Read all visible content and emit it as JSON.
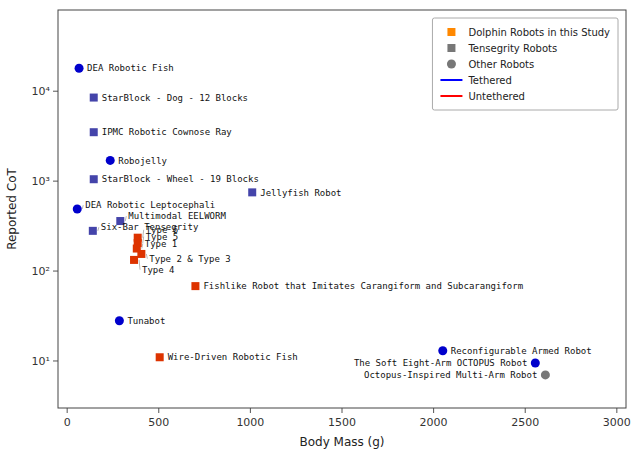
{
  "chart_data": {
    "type": "scatter",
    "xlabel": "Body Mass (g)",
    "ylabel": "Reported CoT",
    "log": "y",
    "grid": false,
    "legend": "upper right",
    "xlim": [
      -50,
      3050
    ],
    "xticks": [
      0,
      500,
      1000,
      1500,
      2000,
      2500,
      3000
    ],
    "ylim": [
      3,
      80000
    ],
    "yticks": [
      {
        "value": 10,
        "label": "10¹"
      },
      {
        "value": 100,
        "label": "10²"
      },
      {
        "value": 1000,
        "label": "10³"
      },
      {
        "value": 10000,
        "label": "10⁴"
      }
    ],
    "x": [
      65,
      145,
      145,
      235,
      145,
      1010,
      55,
      290,
      140,
      385,
      385,
      380,
      405,
      365,
      700,
      285,
      505,
      2050,
      2555,
      2610
    ],
    "values": [
      18000,
      8500,
      3500,
      1700,
      1050,
      750,
      490,
      360,
      280,
      235,
      205,
      178,
      155,
      133,
      68,
      28,
      11,
      13,
      9.5,
      7.0
    ],
    "annotations": [
      "DEA Robotic Fish",
      "StarBlock - Dog - 12 Blocks",
      "IPMC Robotic Cownose Ray",
      "Robojelly",
      "StarBlock - Wheel - 19 Blocks",
      "Jellyfish Robot",
      "DEA Robotic Leptocephali",
      "Multimodal EELWORM",
      "Six-Bar Tensegrity",
      "Type 6",
      "Type 5",
      "Type 1",
      "Type 2 & Type 3",
      "Type 4",
      "Fishlike Robot that Imitates Carangiform and Subcarangiform",
      "Tunabot",
      "Wire-Driven Robotic Fish",
      "Reconfigurable Armed Robot",
      "The Soft Eight-Arm OCTOPUS Robot",
      "Octopus-Inspired Multi-Arm Robot"
    ],
    "colors": [
      "#0000cc",
      "#4444aa",
      "#4444aa",
      "#0000cc",
      "#4444aa",
      "#4444aa",
      "#0000cc",
      "#4444aa",
      "#4444aa",
      "#dd3300",
      "#dd3300",
      "#dd3300",
      "#dd3300",
      "#dd3300",
      "#dd3300",
      "#0000cc",
      "#dd3300",
      "#0000cc",
      "#0000cc",
      "#777777"
    ],
    "markers": [
      "circle",
      "square",
      "square",
      "circle",
      "square",
      "square",
      "circle",
      "square",
      "square",
      "square",
      "square",
      "square",
      "square",
      "square",
      "square",
      "circle",
      "square",
      "circle",
      "circle",
      "circle"
    ],
    "legend_entries": [
      {
        "name": "Dolphin Robots in this Study",
        "color": "#ff8800",
        "marker": "square"
      },
      {
        "name": "Tensegrity Robots",
        "color": "#777777",
        "marker": "square"
      },
      {
        "name": "Other Robots",
        "color": "#777777",
        "marker": "circle"
      },
      {
        "name": "Tethered",
        "color": "#0000ff",
        "line_style": "solid"
      },
      {
        "name": "Untethered",
        "color": "#ff0000",
        "line_style": "solid"
      }
    ]
  }
}
